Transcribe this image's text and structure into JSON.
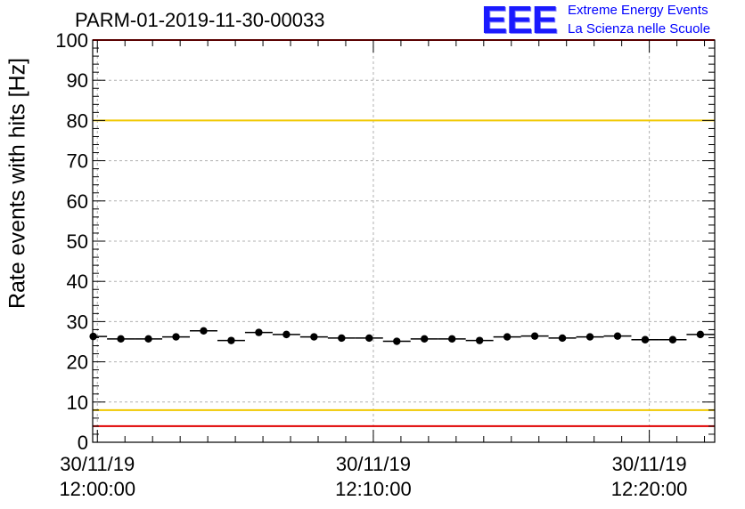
{
  "chart_data": {
    "type": "scatter",
    "title": "PARM-01-2019-11-30-00033",
    "ylabel": "Rate events with hits [Hz]",
    "xlabel": "",
    "ylim": [
      0,
      100
    ],
    "yticks": [
      0,
      10,
      20,
      30,
      40,
      50,
      60,
      70,
      80,
      90,
      100
    ],
    "x_unit": "minutes since 30/11/19 12:00:00",
    "xlim": [
      -0.17,
      22.37
    ],
    "x_ticks": [
      {
        "x": 0,
        "line1": "30/11/19",
        "line2": "12:00:00"
      },
      {
        "x": 10,
        "line1": "30/11/19",
        "line2": "12:10:00"
      },
      {
        "x": 20,
        "line1": "30/11/19",
        "line2": "12:20:00"
      }
    ],
    "grid": true,
    "bin_width": 1,
    "series": [
      {
        "name": "rate",
        "x": [
          -0.15,
          0.85,
          1.85,
          2.85,
          3.85,
          4.85,
          5.85,
          6.85,
          7.85,
          8.85,
          9.85,
          10.85,
          11.85,
          12.85,
          13.85,
          14.85,
          15.85,
          16.85,
          17.85,
          18.85,
          19.85,
          20.85,
          21.85
        ],
        "values": [
          26.3,
          25.7,
          25.7,
          26.2,
          27.7,
          25.3,
          27.3,
          26.8,
          26.2,
          25.9,
          25.9,
          25.1,
          25.7,
          25.7,
          25.3,
          26.2,
          26.4,
          25.9,
          26.2,
          26.4,
          25.5,
          25.5,
          26.8
        ]
      }
    ],
    "reference_lines": [
      {
        "value": 80,
        "color": "#f0c800"
      },
      {
        "value": 8,
        "color": "#f0c800"
      },
      {
        "value": 100,
        "color": "#e00000"
      },
      {
        "value": 4,
        "color": "#e00000"
      }
    ]
  },
  "logo": {
    "mark": "EEE",
    "line1": "Extreme Energy Events",
    "line2": "La Scienza nelle Scuole"
  }
}
